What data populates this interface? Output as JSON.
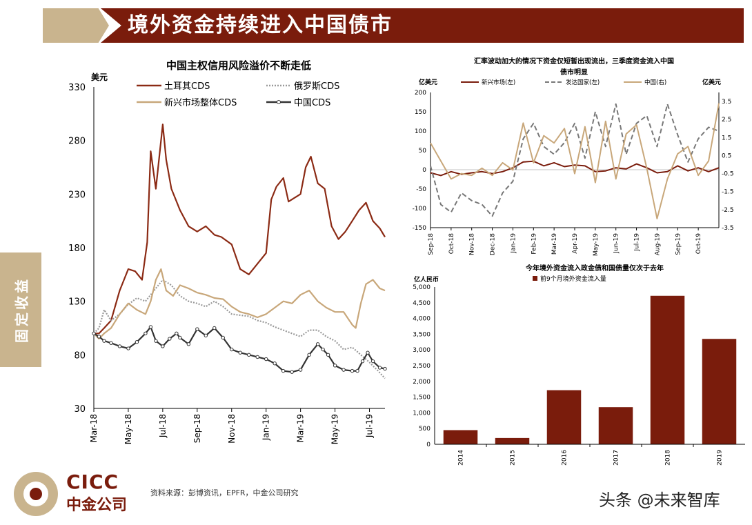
{
  "header": {
    "title": "境外资金持续进入中国债市"
  },
  "sidebar": {
    "label": "固定收益"
  },
  "footer": {
    "source": "资料来源：彭博资讯，EPFR，中金公司研究",
    "logo_en": "CICC",
    "logo_cn": "中金公司",
    "watermark": "头条 @未来智库"
  },
  "colors": {
    "brand": "#7a1c0c",
    "tan": "#c9b48e",
    "turkey": "#8b2a14",
    "russia": "#999999",
    "em": "#c8a77a",
    "china": "#333333"
  },
  "chart_data": [
    {
      "type": "line",
      "title": "中国主权信用风险溢价不断走低",
      "ylabel": "美元",
      "ylim": [
        30,
        330
      ],
      "yticks": [
        "330",
        "280",
        "230",
        "180",
        "130",
        "80",
        "30"
      ],
      "x_tick_labels": [
        "Mar-18",
        "May-18",
        "Jul-18",
        "Sep-18",
        "Nov-18",
        "Jan-19",
        "Mar-19",
        "May-19",
        "Jul-19"
      ],
      "series": [
        {
          "name": "土耳其CDS",
          "color": "#8b2a14",
          "values": [
            [
              0,
              100
            ],
            [
              0.3,
              100
            ],
            [
              0.6,
              105
            ],
            [
              1,
              112
            ],
            [
              1.5,
              140
            ],
            [
              2,
              160
            ],
            [
              2.4,
              158
            ],
            [
              2.8,
              150
            ],
            [
              3.1,
              185
            ],
            [
              3.3,
              270
            ],
            [
              3.6,
              235
            ],
            [
              3.8,
              265
            ],
            [
              4,
              295
            ],
            [
              4.2,
              262
            ],
            [
              4.5,
              235
            ],
            [
              5,
              215
            ],
            [
              5.5,
              200
            ],
            [
              6,
              195
            ],
            [
              6.5,
              200
            ],
            [
              7,
              192
            ],
            [
              7.4,
              190
            ],
            [
              8,
              183
            ],
            [
              8.5,
              160
            ],
            [
              9,
              155
            ],
            [
              9.5,
              165
            ],
            [
              10,
              175
            ],
            [
              10.3,
              225
            ],
            [
              10.6,
              237
            ],
            [
              11,
              245
            ],
            [
              11.3,
              223
            ],
            [
              12,
              230
            ],
            [
              12.3,
              255
            ],
            [
              12.6,
              265
            ],
            [
              13,
              240
            ],
            [
              13.4,
              235
            ],
            [
              13.8,
              200
            ],
            [
              14.2,
              188
            ],
            [
              14.6,
              195
            ],
            [
              15,
              205
            ],
            [
              15.4,
              215
            ],
            [
              15.8,
              222
            ],
            [
              16.2,
              205
            ],
            [
              16.6,
              198
            ],
            [
              16.9,
              190
            ]
          ]
        },
        {
          "name": "俄罗斯CDS",
          "color": "#999999",
          "values": [
            [
              0,
              100
            ],
            [
              0.3,
              105
            ],
            [
              0.6,
              122
            ],
            [
              1,
              112
            ],
            [
              1.5,
              118
            ],
            [
              2,
              127
            ],
            [
              2.5,
              133
            ],
            [
              3,
              130
            ],
            [
              3.5,
              140
            ],
            [
              4,
              150
            ],
            [
              4.5,
              145
            ],
            [
              5,
              135
            ],
            [
              5.5,
              130
            ],
            [
              6,
              128
            ],
            [
              6.5,
              125
            ],
            [
              7,
              130
            ],
            [
              7.5,
              125
            ],
            [
              8,
              118
            ],
            [
              8.5,
              117
            ],
            [
              9,
              116
            ],
            [
              9.5,
              112
            ],
            [
              10,
              110
            ],
            [
              10.5,
              106
            ],
            [
              11,
              103
            ],
            [
              11.5,
              100
            ],
            [
              12,
              97
            ],
            [
              12.5,
              103
            ],
            [
              13,
              103
            ],
            [
              13.5,
              97
            ],
            [
              14,
              93
            ],
            [
              14.5,
              85
            ],
            [
              15,
              87
            ],
            [
              15.5,
              80
            ],
            [
              16,
              73
            ],
            [
              16.5,
              65
            ],
            [
              16.9,
              58
            ]
          ]
        },
        {
          "name": "新兴市场整体CDS",
          "color": "#c8a77a",
          "values": [
            [
              0,
              100
            ],
            [
              0.3,
              95
            ],
            [
              0.6,
              100
            ],
            [
              1,
              105
            ],
            [
              1.5,
              118
            ],
            [
              2,
              128
            ],
            [
              2.5,
              122
            ],
            [
              3,
              118
            ],
            [
              3.3,
              130
            ],
            [
              3.6,
              150
            ],
            [
              3.9,
              160
            ],
            [
              4.2,
              140
            ],
            [
              4.6,
              135
            ],
            [
              5,
              145
            ],
            [
              5.5,
              142
            ],
            [
              6,
              138
            ],
            [
              6.5,
              136
            ],
            [
              7,
              133
            ],
            [
              7.5,
              132
            ],
            [
              8,
              125
            ],
            [
              8.5,
              120
            ],
            [
              9,
              118
            ],
            [
              9.5,
              115
            ],
            [
              10,
              118
            ],
            [
              10.5,
              124
            ],
            [
              11,
              130
            ],
            [
              11.5,
              128
            ],
            [
              12,
              136
            ],
            [
              12.5,
              140
            ],
            [
              13,
              130
            ],
            [
              13.5,
              124
            ],
            [
              14,
              120
            ],
            [
              14.5,
              120
            ],
            [
              15,
              108
            ],
            [
              15.2,
              105
            ],
            [
              15.5,
              128
            ],
            [
              15.8,
              146
            ],
            [
              16.2,
              150
            ],
            [
              16.6,
              142
            ],
            [
              16.9,
              140
            ]
          ]
        },
        {
          "name": "中国CDS",
          "color": "#333333",
          "values": [
            [
              0,
              100
            ],
            [
              0.3,
              97
            ],
            [
              0.6,
              93
            ],
            [
              1,
              91
            ],
            [
              1.5,
              88
            ],
            [
              2,
              86
            ],
            [
              2.5,
              92
            ],
            [
              3,
              100
            ],
            [
              3.3,
              106
            ],
            [
              3.6,
              93
            ],
            [
              4,
              88
            ],
            [
              4.4,
              95
            ],
            [
              4.8,
              100
            ],
            [
              5,
              96
            ],
            [
              5.5,
              90
            ],
            [
              6,
              104
            ],
            [
              6.5,
              98
            ],
            [
              7,
              105
            ],
            [
              7.5,
              96
            ],
            [
              8,
              85
            ],
            [
              8.5,
              82
            ],
            [
              9,
              80
            ],
            [
              9.5,
              78
            ],
            [
              10,
              76
            ],
            [
              10.5,
              72
            ],
            [
              11,
              65
            ],
            [
              11.5,
              64
            ],
            [
              12,
              66
            ],
            [
              12.5,
              80
            ],
            [
              13,
              90
            ],
            [
              13.3,
              85
            ],
            [
              13.6,
              80
            ],
            [
              14,
              70
            ],
            [
              14.5,
              66
            ],
            [
              15,
              65
            ],
            [
              15.3,
              65
            ],
            [
              15.6,
              74
            ],
            [
              15.9,
              82
            ],
            [
              16.2,
              74
            ],
            [
              16.6,
              68
            ],
            [
              16.9,
              67
            ]
          ]
        }
      ]
    },
    {
      "type": "line",
      "title": "汇率波动加大的情况下资金仅短暂出现流出，三季度资金流入中国债市明显",
      "ylabel_left": "亿美元",
      "ylabel_right": "亿美元",
      "ylim_left": [
        -150,
        200
      ],
      "ylim_right": [
        -3.5,
        4.0
      ],
      "yticks_left": [
        "200",
        "150",
        "100",
        "50",
        "0",
        "-50",
        "-100",
        "-150"
      ],
      "yticks_right": [
        "3.5",
        "2.5",
        "1.5",
        "0.5",
        "-0.5",
        "-1.5",
        "-2.5",
        "-3.5"
      ],
      "x_tick_labels": [
        "Sep-18",
        "Oct-18",
        "Nov-18",
        "Dec-18",
        "Jan-19",
        "Feb-19",
        "Mar-19",
        "Apr-19",
        "May-19",
        "Jun-19",
        "Jul-19",
        "Aug-19",
        "Sep-19",
        "Oct-19"
      ],
      "series": [
        {
          "name": "新兴市场(左)",
          "axis": "left",
          "color": "#7a1c0c",
          "values": [
            [
              0,
              -8
            ],
            [
              0.5,
              -15
            ],
            [
              1,
              -5
            ],
            [
              1.5,
              -12
            ],
            [
              2,
              -8
            ],
            [
              2.5,
              -5
            ],
            [
              3,
              -10
            ],
            [
              3.5,
              -5
            ],
            [
              4,
              5
            ],
            [
              4.5,
              20
            ],
            [
              5,
              22
            ],
            [
              5.5,
              10
            ],
            [
              6,
              18
            ],
            [
              6.5,
              8
            ],
            [
              7,
              12
            ],
            [
              7.5,
              10
            ],
            [
              8,
              -5
            ],
            [
              8.5,
              -3
            ],
            [
              9,
              5
            ],
            [
              9.5,
              2
            ],
            [
              10,
              15
            ],
            [
              10.5,
              5
            ],
            [
              11,
              -8
            ],
            [
              11.5,
              -5
            ],
            [
              12,
              10
            ],
            [
              12.5,
              -3
            ],
            [
              13,
              5
            ],
            [
              13.5,
              -5
            ],
            [
              14,
              5
            ]
          ]
        },
        {
          "name": "发达国家(左)",
          "axis": "left",
          "color": "#777777",
          "values": [
            [
              0,
              10
            ],
            [
              0.5,
              -90
            ],
            [
              1,
              -110
            ],
            [
              1.5,
              -60
            ],
            [
              2,
              -80
            ],
            [
              2.5,
              -90
            ],
            [
              3,
              -120
            ],
            [
              3.5,
              -60
            ],
            [
              4,
              -30
            ],
            [
              4.5,
              80
            ],
            [
              5,
              120
            ],
            [
              5.5,
              60
            ],
            [
              6,
              40
            ],
            [
              6.5,
              70
            ],
            [
              7,
              120
            ],
            [
              7.5,
              30
            ],
            [
              8,
              150
            ],
            [
              8.5,
              60
            ],
            [
              9,
              170
            ],
            [
              9.5,
              40
            ],
            [
              10,
              120
            ],
            [
              10.5,
              140
            ],
            [
              11,
              60
            ],
            [
              11.5,
              170
            ],
            [
              12,
              90
            ],
            [
              12.5,
              20
            ],
            [
              13,
              80
            ],
            [
              13.5,
              110
            ],
            [
              14,
              100
            ]
          ]
        },
        {
          "name": "中国(右)",
          "axis": "right",
          "color": "#c8a77a",
          "values": [
            [
              0,
              1.2
            ],
            [
              0.5,
              0.2
            ],
            [
              1,
              -0.8
            ],
            [
              1.5,
              -0.5
            ],
            [
              2,
              -0.6
            ],
            [
              2.5,
              -0.2
            ],
            [
              3,
              -0.6
            ],
            [
              3.5,
              0.1
            ],
            [
              4,
              -0.3
            ],
            [
              4.5,
              2.3
            ],
            [
              5,
              0.1
            ],
            [
              5.5,
              1.6
            ],
            [
              6,
              1.2
            ],
            [
              6.5,
              2.0
            ],
            [
              7,
              -0.5
            ],
            [
              7.5,
              2.1
            ],
            [
              8,
              -1.0
            ],
            [
              8.5,
              2.4
            ],
            [
              9,
              -0.8
            ],
            [
              9.5,
              1.7
            ],
            [
              10,
              2.2
            ],
            [
              10.5,
              -0.2
            ],
            [
              11,
              -3.0
            ],
            [
              11.5,
              -0.8
            ],
            [
              12,
              0.6
            ],
            [
              12.5,
              1.0
            ],
            [
              13,
              -0.6
            ],
            [
              13.5,
              0.2
            ],
            [
              14,
              3.4
            ]
          ]
        }
      ]
    },
    {
      "type": "bar",
      "title": "今年境外资金流入政金债和国债量仅次于去年",
      "ylabel": "亿人民币",
      "legend": "前9个月境外资金流入量",
      "ylim": [
        0,
        5000
      ],
      "yticks": [
        "5,000",
        "4,500",
        "4,000",
        "3,500",
        "3,000",
        "2,500",
        "2,000",
        "1,500",
        "1,000",
        "500",
        "0"
      ],
      "categories": [
        "2014",
        "2015",
        "2016",
        "2017",
        "2018",
        "2019"
      ],
      "values": [
        450,
        200,
        1720,
        1180,
        4720,
        3350
      ],
      "color": "#7a1c0c"
    }
  ]
}
